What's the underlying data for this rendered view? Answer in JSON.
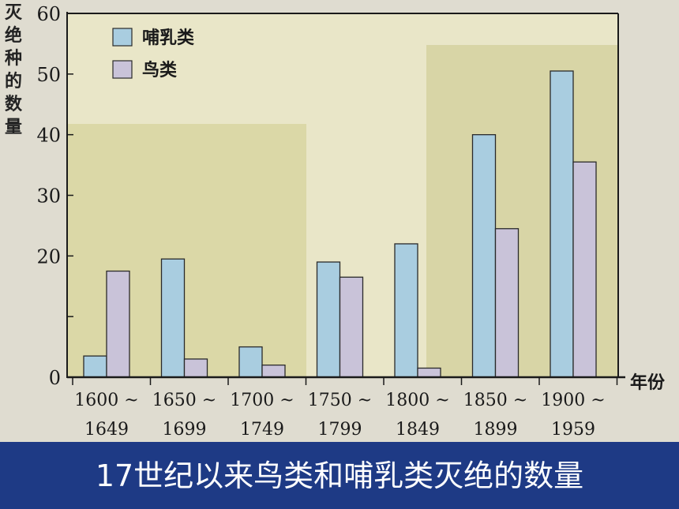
{
  "caption": "17世纪以来鸟类和哺乳类灭绝的数量",
  "chart_data": {
    "type": "bar",
    "ylabel": "灭绝种的数量",
    "xlabel": "年份",
    "ylim": [
      0,
      60
    ],
    "yticks": [
      0,
      10,
      20,
      30,
      40,
      50,
      60
    ],
    "ytick_labels": [
      "0",
      "",
      "20",
      "30",
      "40",
      "50",
      "60"
    ],
    "categories": [
      [
        "1600 ~",
        "1649"
      ],
      [
        "1650 ~",
        "1699"
      ],
      [
        "1700 ~",
        "1749"
      ],
      [
        "1750 ~",
        "1799"
      ],
      [
        "1800 ~",
        "1849"
      ],
      [
        "1850 ~",
        "1899"
      ],
      [
        "1900 ~",
        "1959"
      ]
    ],
    "series": [
      {
        "name": "哺乳类",
        "color": "#a9cde0",
        "values": [
          3.5,
          19.5,
          5,
          19,
          22,
          40,
          50.5
        ]
      },
      {
        "name": "鸟类",
        "color": "#c9c3d9",
        "values": [
          17.5,
          3,
          2,
          16.5,
          1.5,
          24.5,
          35.5
        ]
      }
    ],
    "legend_position": "top-left",
    "grid": false
  }
}
